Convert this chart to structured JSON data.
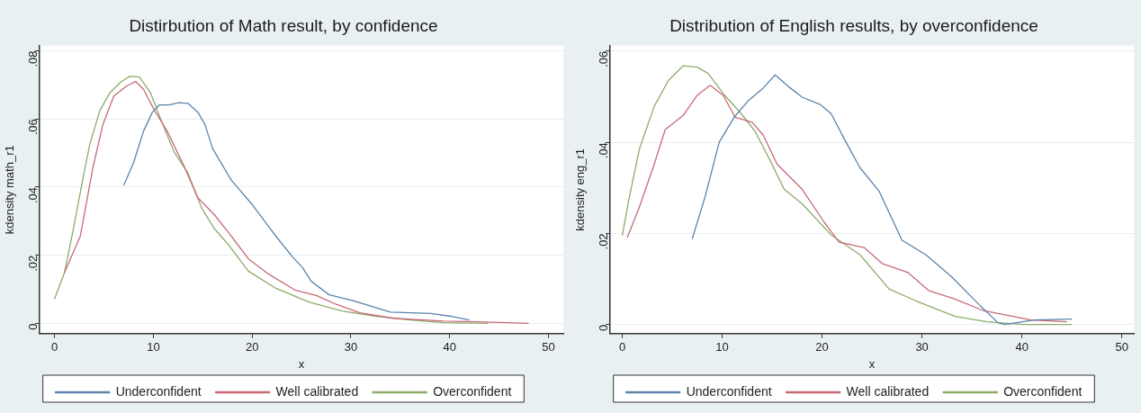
{
  "chart_data": [
    {
      "type": "line",
      "title": "Distirbution of Math result, by confidence",
      "xlabel": "x",
      "ylabel": "kdensity math_r1",
      "xlim": [
        -1.5,
        51.5
      ],
      "xticks": [
        0,
        10,
        20,
        30,
        40,
        50
      ],
      "ylim": [
        -0.003,
        0.0815
      ],
      "yticks": [
        {
          "value": 0,
          "label": "0"
        },
        {
          "value": 0.02,
          "label": ".02"
        },
        {
          "value": 0.04,
          "label": ".04"
        },
        {
          "value": 0.06,
          "label": ".06"
        },
        {
          "value": 0.08,
          "label": ".08"
        }
      ],
      "grid": "y",
      "legend": "bottom",
      "marker": "none",
      "line_style": "solid",
      "series": [
        {
          "name": "Underconfident",
          "color": "#5b84ac",
          "x": [
            7.0,
            8.0,
            9.0,
            9.9,
            10.6,
            11.6,
            12.6,
            13.5,
            14.5,
            15.2,
            16.0,
            17.9,
            20.0,
            22.4,
            24.1,
            25.1,
            26.0,
            27.8,
            30.2,
            34.0,
            38.1,
            40.1,
            42.0
          ],
          "values": [
            0.0405,
            0.0472,
            0.0564,
            0.062,
            0.0641,
            0.0641,
            0.0648,
            0.0646,
            0.062,
            0.0585,
            0.0513,
            0.042,
            0.0349,
            0.0256,
            0.0195,
            0.0164,
            0.0123,
            0.0084,
            0.0067,
            0.0033,
            0.0029,
            0.0021,
            0.001
          ]
        },
        {
          "name": "Well calibrated",
          "color": "#c86a76",
          "x": [
            1.0,
            2.6,
            3.9,
            4.9,
            6.0,
            7.3,
            8.2,
            9.0,
            10.1,
            11.4,
            13.1,
            14.5,
            16.2,
            17.9,
            19.6,
            21.7,
            24.4,
            26.5,
            28.5,
            30.9,
            34.3,
            39.4,
            42.8,
            48.0
          ],
          "values": [
            0.0149,
            0.0256,
            0.046,
            0.0585,
            0.0667,
            0.0697,
            0.071,
            0.0687,
            0.0626,
            0.0564,
            0.0462,
            0.0369,
            0.0318,
            0.0256,
            0.019,
            0.0144,
            0.0097,
            0.0082,
            0.0056,
            0.0031,
            0.0015,
            0.0007,
            0.0005,
            0
          ]
        },
        {
          "name": "Overconfident",
          "color": "#8eab6c",
          "x": [
            0,
            1.0,
            1.9,
            2.9,
            3.6,
            4.6,
            5.6,
            6.7,
            7.6,
            8.6,
            9.7,
            10.8,
            12.1,
            13.5,
            14.9,
            16.2,
            17.6,
            19.6,
            22.4,
            25.8,
            29.2,
            32.6,
            36.0,
            39.4,
            43.9
          ],
          "values": [
            0.0072,
            0.0149,
            0.0277,
            0.043,
            0.053,
            0.0626,
            0.0677,
            0.0708,
            0.0725,
            0.0723,
            0.0677,
            0.0595,
            0.0503,
            0.0441,
            0.0338,
            0.0277,
            0.0231,
            0.0154,
            0.0103,
            0.0062,
            0.0036,
            0.0021,
            0.001,
            0.0002,
            0
          ]
        }
      ]
    },
    {
      "type": "line",
      "title": "Distribution of English results, by overconfidence",
      "xlabel": "x",
      "ylabel": "kdensity eng_r1",
      "xlim": [
        -1.2,
        51.2
      ],
      "xticks": [
        0,
        10,
        20,
        30,
        40,
        50
      ],
      "ylim": [
        -0.002,
        0.0612
      ],
      "yticks": [
        {
          "value": 0,
          "label": "0"
        },
        {
          "value": 0.02,
          "label": ".02"
        },
        {
          "value": 0.04,
          "label": ".04"
        },
        {
          "value": 0.06,
          "label": ".06"
        }
      ],
      "grid": "y",
      "legend": "bottom",
      "marker": "none",
      "line_style": "solid",
      "series": [
        {
          "name": "Underconfident",
          "color": "#5b84ac",
          "x": [
            7.0,
            8.3,
            9.7,
            11.2,
            12.6,
            14.1,
            15.3,
            16.6,
            18.0,
            19.8,
            20.9,
            22.4,
            23.8,
            25.7,
            28.0,
            30.4,
            32.9,
            35.8,
            37.6,
            38.3,
            41.2,
            45.0
          ],
          "values": [
            0.0188,
            0.0281,
            0.04,
            0.0455,
            0.0491,
            0.0519,
            0.0548,
            0.0523,
            0.0499,
            0.0483,
            0.0463,
            0.04,
            0.0344,
            0.0293,
            0.0185,
            0.0153,
            0.0106,
            0.0042,
            0.0004,
            0,
            0.001,
            0.0012
          ]
        },
        {
          "name": "Well calibrated",
          "color": "#c86a76",
          "x": [
            0.5,
            1.7,
            3.2,
            4.3,
            6.1,
            7.5,
            8.8,
            10.1,
            11.3,
            13.0,
            14.1,
            15.5,
            18.0,
            20.2,
            21.7,
            24.2,
            26.0,
            28.6,
            30.7,
            33.3,
            36.2,
            39.1,
            40.9,
            44.5
          ],
          "values": [
            0.0191,
            0.0257,
            0.0352,
            0.0428,
            0.0459,
            0.0503,
            0.0525,
            0.0503,
            0.0455,
            0.0444,
            0.0416,
            0.0352,
            0.0297,
            0.0225,
            0.0181,
            0.0169,
            0.0134,
            0.0114,
            0.0074,
            0.0056,
            0.003,
            0.0018,
            0.001,
            0.0006
          ]
        },
        {
          "name": "Overconfident",
          "color": "#8eab6c",
          "x": [
            0,
            0.65,
            1.7,
            3.2,
            4.6,
            6.1,
            7.5,
            8.6,
            10.1,
            11.9,
            13.3,
            14.8,
            16.2,
            18.0,
            20.9,
            23.8,
            26.7,
            29.6,
            33.3,
            36.5,
            40.1,
            45.0
          ],
          "values": [
            0.0195,
            0.0273,
            0.0384,
            0.0479,
            0.0535,
            0.0568,
            0.0565,
            0.0551,
            0.0507,
            0.0463,
            0.0424,
            0.036,
            0.0297,
            0.0265,
            0.0197,
            0.0153,
            0.0078,
            0.005,
            0.0018,
            0.0006,
            0,
            0
          ]
        }
      ]
    }
  ]
}
